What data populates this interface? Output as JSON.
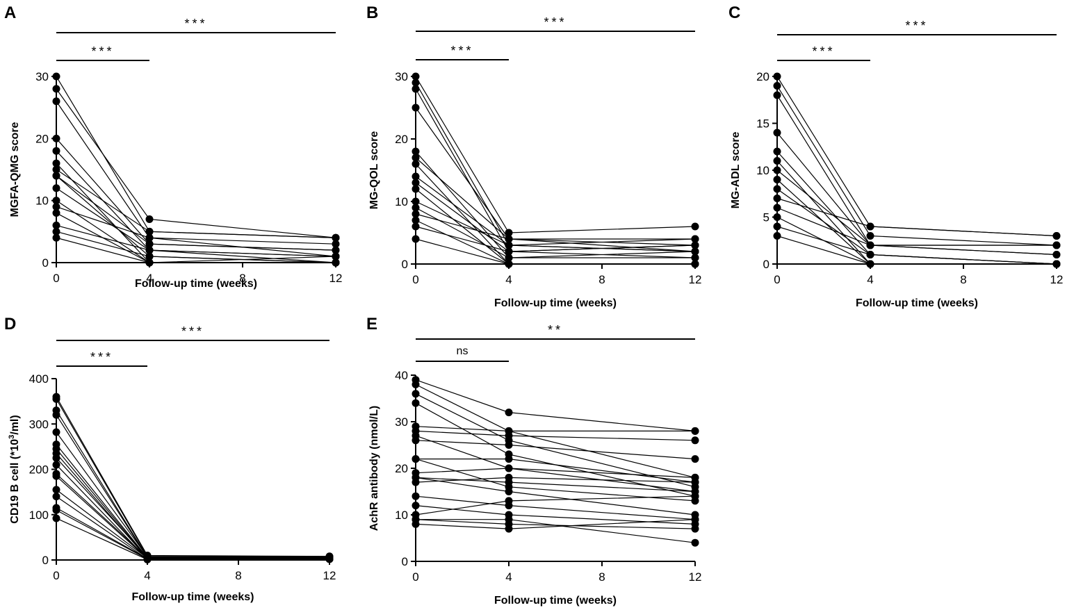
{
  "figure": {
    "background": "#ffffff",
    "ink": "#000000"
  },
  "chart_data": [
    {
      "panel": "A",
      "type": "line",
      "title": "",
      "xlabel": "Follow-up time (weeks)",
      "ylabel": "MGFA-QMG score",
      "x_ticks": [
        0,
        4,
        8,
        12
      ],
      "y_ticks": [
        0,
        10,
        20,
        30
      ],
      "xlim": [
        0,
        12
      ],
      "ylim": [
        0,
        30
      ],
      "significance": [
        {
          "from": 0,
          "to": 12,
          "label": "***"
        },
        {
          "from": 0,
          "to": 4,
          "label": "***"
        }
      ],
      "subjects": [
        {
          "x": [
            0,
            4,
            12
          ],
          "y": [
            30,
            5,
            4
          ]
        },
        {
          "x": [
            0,
            4,
            12
          ],
          "y": [
            28,
            7,
            4
          ]
        },
        {
          "x": [
            0,
            4,
            12
          ],
          "y": [
            26,
            4,
            3
          ]
        },
        {
          "x": [
            0,
            4,
            12
          ],
          "y": [
            20,
            3,
            2
          ]
        },
        {
          "x": [
            0,
            4,
            12
          ],
          "y": [
            18,
            2,
            1
          ]
        },
        {
          "x": [
            0,
            4,
            12
          ],
          "y": [
            16,
            0,
            0
          ]
        },
        {
          "x": [
            0,
            4,
            12
          ],
          "y": [
            15,
            5,
            4
          ]
        },
        {
          "x": [
            0,
            4,
            12
          ],
          "y": [
            14,
            3,
            2
          ]
        },
        {
          "x": [
            0,
            4,
            12
          ],
          "y": [
            14,
            1,
            0
          ]
        },
        {
          "x": [
            0,
            4,
            12
          ],
          "y": [
            12,
            2,
            0
          ]
        },
        {
          "x": [
            0,
            4,
            12
          ],
          "y": [
            10,
            0,
            1
          ]
        },
        {
          "x": [
            0,
            4,
            12
          ],
          "y": [
            9,
            4,
            1
          ]
        },
        {
          "x": [
            0,
            4,
            12
          ],
          "y": [
            8,
            0,
            0
          ]
        },
        {
          "x": [
            0,
            4,
            12
          ],
          "y": [
            6,
            2,
            1
          ]
        },
        {
          "x": [
            0,
            4,
            12
          ],
          "y": [
            5,
            1,
            0
          ]
        },
        {
          "x": [
            0,
            4,
            12
          ],
          "y": [
            4,
            0,
            0
          ]
        }
      ]
    },
    {
      "panel": "B",
      "type": "line",
      "title": "",
      "xlabel": "Follow-up time (weeks)",
      "ylabel": "MG-QOL score",
      "x_ticks": [
        0,
        4,
        8,
        12
      ],
      "y_ticks": [
        0,
        10,
        20,
        30
      ],
      "xlim": [
        0,
        12
      ],
      "ylim": [
        0,
        30
      ],
      "significance": [
        {
          "from": 0,
          "to": 12,
          "label": "***"
        },
        {
          "from": 0,
          "to": 4,
          "label": "***"
        }
      ],
      "subjects": [
        {
          "x": [
            0,
            4,
            12
          ],
          "y": [
            30,
            5,
            6
          ]
        },
        {
          "x": [
            0,
            4,
            12
          ],
          "y": [
            29,
            3,
            4
          ]
        },
        {
          "x": [
            0,
            4,
            12
          ],
          "y": [
            28,
            2,
            3
          ]
        },
        {
          "x": [
            0,
            4,
            12
          ],
          "y": [
            25,
            4,
            2
          ]
        },
        {
          "x": [
            0,
            4,
            12
          ],
          "y": [
            18,
            1,
            2
          ]
        },
        {
          "x": [
            0,
            4,
            12
          ],
          "y": [
            17,
            4,
            3
          ]
        },
        {
          "x": [
            0,
            4,
            12
          ],
          "y": [
            16,
            0,
            0
          ]
        },
        {
          "x": [
            0,
            4,
            12
          ],
          "y": [
            14,
            3,
            2
          ]
        },
        {
          "x": [
            0,
            4,
            12
          ],
          "y": [
            13,
            2,
            1
          ]
        },
        {
          "x": [
            0,
            4,
            12
          ],
          "y": [
            12,
            0,
            0
          ]
        },
        {
          "x": [
            0,
            4,
            12
          ],
          "y": [
            10,
            3,
            2
          ]
        },
        {
          "x": [
            0,
            4,
            12
          ],
          "y": [
            9,
            1,
            1
          ]
        },
        {
          "x": [
            0,
            4,
            12
          ],
          "y": [
            8,
            4,
            4
          ]
        },
        {
          "x": [
            0,
            4,
            12
          ],
          "y": [
            7,
            0,
            0
          ]
        },
        {
          "x": [
            0,
            4,
            12
          ],
          "y": [
            6,
            2,
            3
          ]
        },
        {
          "x": [
            0,
            4,
            12
          ],
          "y": [
            4,
            0,
            0
          ]
        }
      ]
    },
    {
      "panel": "C",
      "type": "line",
      "title": "",
      "xlabel": "Follow-up time (weeks)",
      "ylabel": "MG-ADL score",
      "x_ticks": [
        0,
        4,
        8,
        12
      ],
      "y_ticks": [
        0,
        5,
        10,
        15,
        20
      ],
      "xlim": [
        0,
        12
      ],
      "ylim": [
        0,
        20
      ],
      "significance": [
        {
          "from": 0,
          "to": 12,
          "label": "***"
        },
        {
          "from": 0,
          "to": 4,
          "label": "***"
        }
      ],
      "subjects": [
        {
          "x": [
            0,
            4,
            12
          ],
          "y": [
            20,
            4,
            3
          ]
        },
        {
          "x": [
            0,
            4,
            12
          ],
          "y": [
            19,
            3,
            2
          ]
        },
        {
          "x": [
            0,
            4,
            12
          ],
          "y": [
            18,
            2,
            2
          ]
        },
        {
          "x": [
            0,
            4,
            12
          ],
          "y": [
            14,
            2,
            1
          ]
        },
        {
          "x": [
            0,
            4,
            12
          ],
          "y": [
            12,
            1,
            0
          ]
        },
        {
          "x": [
            0,
            4,
            12
          ],
          "y": [
            11,
            0,
            0
          ]
        },
        {
          "x": [
            0,
            4,
            12
          ],
          "y": [
            10,
            2,
            1
          ]
        },
        {
          "x": [
            0,
            4,
            12
          ],
          "y": [
            9,
            0,
            0
          ]
        },
        {
          "x": [
            0,
            4,
            12
          ],
          "y": [
            8,
            1,
            0
          ]
        },
        {
          "x": [
            0,
            4,
            12
          ],
          "y": [
            7,
            4,
            3
          ]
        },
        {
          "x": [
            0,
            4,
            12
          ],
          "y": [
            6,
            2,
            2
          ]
        },
        {
          "x": [
            0,
            4,
            12
          ],
          "y": [
            5,
            0,
            0
          ]
        },
        {
          "x": [
            0,
            4,
            12
          ],
          "y": [
            4,
            1,
            0
          ]
        },
        {
          "x": [
            0,
            4,
            12
          ],
          "y": [
            3,
            0,
            0
          ]
        }
      ]
    },
    {
      "panel": "D",
      "type": "line",
      "title": "",
      "xlabel": "Follow-up time (weeks)",
      "ylabel_prefix": "CD19 B cell (*10",
      "ylabel_sup": "3",
      "ylabel_suffix": "/ml)",
      "x_ticks": [
        0,
        4,
        8,
        12
      ],
      "y_ticks": [
        0,
        100,
        200,
        300,
        400
      ],
      "xlim": [
        0,
        12
      ],
      "ylim": [
        0,
        400
      ],
      "significance": [
        {
          "from": 0,
          "to": 12,
          "label": "***"
        },
        {
          "from": 0,
          "to": 4,
          "label": "***"
        }
      ],
      "subjects": [
        {
          "x": [
            0,
            4,
            12
          ],
          "y": [
            360,
            10,
            8
          ]
        },
        {
          "x": [
            0,
            4,
            12
          ],
          "y": [
            355,
            8,
            7
          ]
        },
        {
          "x": [
            0,
            4,
            12
          ],
          "y": [
            330,
            6,
            6
          ]
        },
        {
          "x": [
            0,
            4,
            12
          ],
          "y": [
            320,
            5,
            5
          ]
        },
        {
          "x": [
            0,
            4,
            12
          ],
          "y": [
            282,
            7,
            4
          ]
        },
        {
          "x": [
            0,
            4,
            12
          ],
          "y": [
            255,
            5,
            6
          ]
        },
        {
          "x": [
            0,
            4,
            12
          ],
          "y": [
            245,
            4,
            3
          ]
        },
        {
          "x": [
            0,
            4,
            12
          ],
          "y": [
            235,
            3,
            5
          ]
        },
        {
          "x": [
            0,
            4,
            12
          ],
          "y": [
            225,
            6,
            4
          ]
        },
        {
          "x": [
            0,
            4,
            12
          ],
          "y": [
            210,
            2,
            3
          ]
        },
        {
          "x": [
            0,
            4,
            12
          ],
          "y": [
            190,
            5,
            5
          ]
        },
        {
          "x": [
            0,
            4,
            12
          ],
          "y": [
            185,
            3,
            2
          ]
        },
        {
          "x": [
            0,
            4,
            12
          ],
          "y": [
            155,
            4,
            4
          ]
        },
        {
          "x": [
            0,
            4,
            12
          ],
          "y": [
            140,
            2,
            3
          ]
        },
        {
          "x": [
            0,
            4,
            12
          ],
          "y": [
            115,
            3,
            2
          ]
        },
        {
          "x": [
            0,
            4,
            12
          ],
          "y": [
            110,
            2,
            4
          ]
        },
        {
          "x": [
            0,
            4,
            12
          ],
          "y": [
            92,
            1,
            2
          ]
        }
      ]
    },
    {
      "panel": "E",
      "type": "line",
      "title": "",
      "xlabel": "Follow-up time (weeks)",
      "ylabel": "AchR antibody (nmol/L)",
      "x_ticks": [
        0,
        4,
        8,
        12
      ],
      "y_ticks": [
        0,
        10,
        20,
        30,
        40
      ],
      "xlim": [
        0,
        12
      ],
      "ylim": [
        0,
        40
      ],
      "significance": [
        {
          "from": 0,
          "to": 12,
          "label": "**"
        },
        {
          "from": 0,
          "to": 4,
          "label": "ns"
        }
      ],
      "subjects": [
        {
          "x": [
            0,
            4,
            12
          ],
          "y": [
            39,
            32,
            28
          ]
        },
        {
          "x": [
            0,
            4,
            12
          ],
          "y": [
            38,
            28,
            18
          ]
        },
        {
          "x": [
            0,
            4,
            12
          ],
          "y": [
            36,
            26,
            16
          ]
        },
        {
          "x": [
            0,
            4,
            12
          ],
          "y": [
            34,
            23,
            14
          ]
        },
        {
          "x": [
            0,
            4,
            12
          ],
          "y": [
            29,
            28,
            28
          ]
        },
        {
          "x": [
            0,
            4,
            12
          ],
          "y": [
            28,
            27,
            26
          ]
        },
        {
          "x": [
            0,
            4,
            12
          ],
          "y": [
            27,
            20,
            15
          ]
        },
        {
          "x": [
            0,
            4,
            12
          ],
          "y": [
            26,
            25,
            22
          ]
        },
        {
          "x": [
            0,
            4,
            12
          ],
          "y": [
            22,
            22,
            17
          ]
        },
        {
          "x": [
            0,
            4,
            12
          ],
          "y": [
            22,
            16,
            13
          ]
        },
        {
          "x": [
            0,
            4,
            12
          ],
          "y": [
            19,
            20,
            18
          ]
        },
        {
          "x": [
            0,
            4,
            12
          ],
          "y": [
            18,
            17,
            15
          ]
        },
        {
          "x": [
            0,
            4,
            12
          ],
          "y": [
            18,
            15,
            10
          ]
        },
        {
          "x": [
            0,
            4,
            12
          ],
          "y": [
            17,
            18,
            17
          ]
        },
        {
          "x": [
            0,
            4,
            12
          ],
          "y": [
            14,
            12,
            9
          ]
        },
        {
          "x": [
            0,
            4,
            12
          ],
          "y": [
            12,
            10,
            8
          ]
        },
        {
          "x": [
            0,
            4,
            12
          ],
          "y": [
            10,
            13,
            14
          ]
        },
        {
          "x": [
            0,
            4,
            12
          ],
          "y": [
            9,
            8,
            7
          ]
        },
        {
          "x": [
            0,
            4,
            12
          ],
          "y": [
            9,
            9,
            4
          ]
        },
        {
          "x": [
            0,
            4,
            12
          ],
          "y": [
            8,
            7,
            9
          ]
        }
      ]
    }
  ]
}
